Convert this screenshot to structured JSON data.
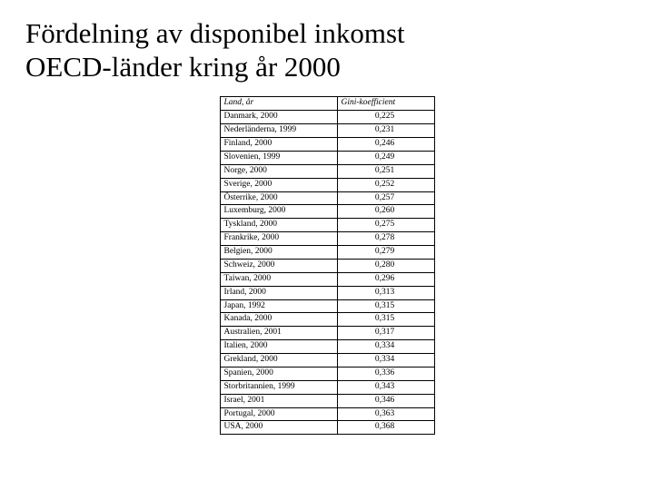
{
  "title_line1": "Fördelning av disponibel inkomst",
  "title_line2": "OECD-länder  kring år 2000",
  "table": {
    "columns": [
      "Land, år",
      "Gini-koefficient"
    ],
    "rows": [
      [
        "Danmark, 2000",
        "0,225"
      ],
      [
        "Nederländerna, 1999",
        "0,231"
      ],
      [
        "Finland, 2000",
        "0,246"
      ],
      [
        "Slovenien, 1999",
        "0,249"
      ],
      [
        "Norge, 2000",
        "0,251"
      ],
      [
        "Sverige, 2000",
        "0,252"
      ],
      [
        "Österrike, 2000",
        "0,257"
      ],
      [
        "Luxemburg, 2000",
        "0,260"
      ],
      [
        "Tyskland, 2000",
        "0,275"
      ],
      [
        "Frankrike, 2000",
        "0,278"
      ],
      [
        "Belgien, 2000",
        "0,279"
      ],
      [
        "Schweiz, 2000",
        "0,280"
      ],
      [
        "Taiwan, 2000",
        "0,296"
      ],
      [
        "Irland, 2000",
        "0,313"
      ],
      [
        "Japan, 1992",
        "0,315"
      ],
      [
        "Kanada, 2000",
        "0,315"
      ],
      [
        "Australien, 2001",
        "0,317"
      ],
      [
        "Italien, 2000",
        "0,334"
      ],
      [
        "Grekland, 2000",
        "0,334"
      ],
      [
        "Spanien, 2000",
        "0,336"
      ],
      [
        "Storbritannien, 1999",
        "0,343"
      ],
      [
        "Israel, 2001",
        "0,346"
      ],
      [
        "Portugal, 2000",
        "0,363"
      ],
      [
        "USA, 2000",
        "0,368"
      ]
    ]
  }
}
